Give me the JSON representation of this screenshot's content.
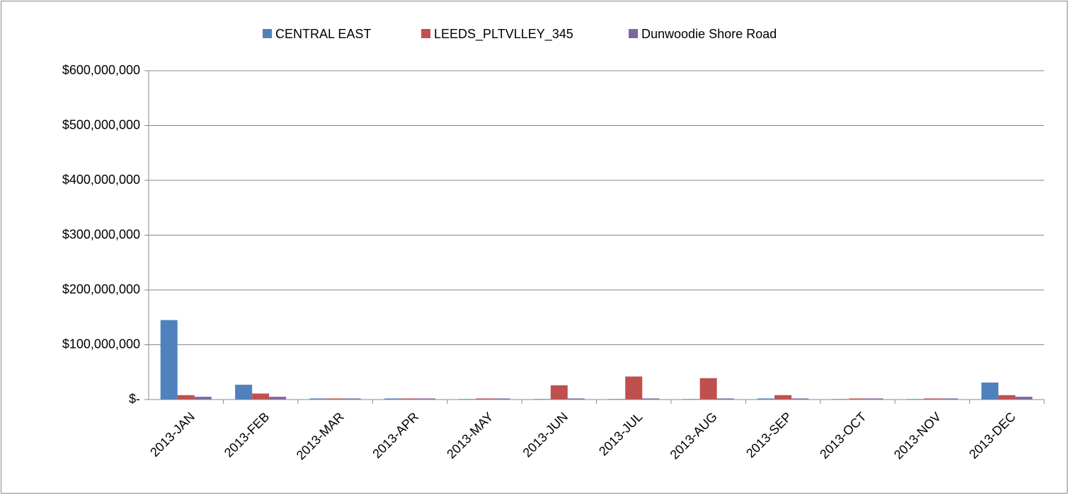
{
  "chart_data": {
    "type": "bar",
    "categories": [
      "2013-JAN",
      "2013-FEB",
      "2013-MAR",
      "2013-APR",
      "2013-MAY",
      "2013-JUN",
      "2013-JUL",
      "2013-AUG",
      "2013-SEP",
      "2013-OCT",
      "2013-NOV",
      "2013-DEC"
    ],
    "series": [
      {
        "name": "CENTRAL EAST",
        "color": "#4f81bd",
        "values": [
          145000000,
          27000000,
          2000000,
          2000000,
          1000000,
          1000000,
          1000000,
          1000000,
          2000000,
          1000000,
          1000000,
          31000000
        ]
      },
      {
        "name": "LEEDS_PLTVLLEY_345",
        "color": "#c0504d",
        "values": [
          8000000,
          11000000,
          2000000,
          2000000,
          2000000,
          26000000,
          42000000,
          39000000,
          8000000,
          2000000,
          2000000,
          8000000
        ]
      },
      {
        "name": "Dunwoodie Shore Road",
        "color": "#8064a2",
        "values": [
          5000000,
          5000000,
          2000000,
          2000000,
          2000000,
          2000000,
          2000000,
          2000000,
          2000000,
          2000000,
          2000000,
          5000000
        ]
      }
    ],
    "ylim": [
      0,
      600000000
    ],
    "yticks": [
      {
        "value": 0,
        "label": "$-"
      },
      {
        "value": 100000000,
        "label": "$100,000,000"
      },
      {
        "value": 200000000,
        "label": "$200,000,000"
      },
      {
        "value": 300000000,
        "label": "$300,000,000"
      },
      {
        "value": 400000000,
        "label": "$400,000,000"
      },
      {
        "value": 500000000,
        "label": "$500,000,000"
      },
      {
        "value": 600000000,
        "label": "$600,000,000"
      }
    ],
    "grid": true,
    "legend": "top"
  }
}
